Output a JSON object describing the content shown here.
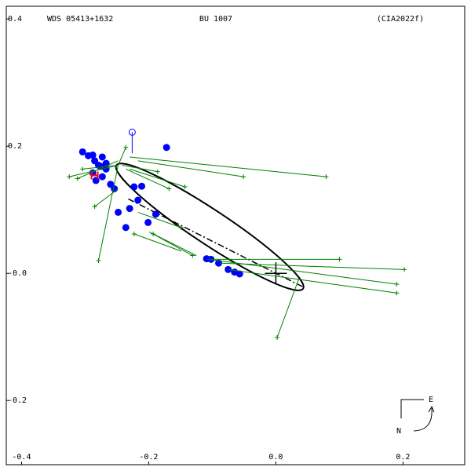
{
  "chart_data": {
    "type": "scatter",
    "title": "WDS 05413+1632",
    "subtitle": "BU 1007",
    "reference": "(CIA2022f)",
    "xlim": [
      -0.424,
      0.297
    ],
    "ylim": [
      -0.301,
      0.42
    ],
    "xticks": [
      -0.4,
      -0.2,
      {
        "value": 0,
        "label": "0.0"
      },
      0.2
    ],
    "yticks": [
      0.4,
      0.2,
      {
        "value": 0,
        "label": "-0.0"
      },
      -0.2
    ],
    "compass": {
      "east": "E",
      "north": "N"
    },
    "primary": {
      "x": 0,
      "y": 0,
      "color": "#000000"
    },
    "orbit": {
      "center_x": -0.104,
      "center_y": 0.073,
      "semi_major": 0.176,
      "semi_minor": 0.027,
      "angle": -33.5,
      "color": "#000000"
    },
    "node_line": {
      "x": [
        -0.232,
        0.042
      ],
      "y": [
        0.117,
        -0.021
      ]
    },
    "series": [
      {
        "color": "#0000ff",
        "marker": "dot",
        "x": [
          -0.304,
          -0.295,
          -0.288,
          -0.285,
          -0.279,
          -0.288,
          -0.283,
          -0.273,
          -0.267,
          -0.275,
          -0.26,
          -0.254,
          -0.248,
          -0.236,
          -0.223,
          -0.217,
          -0.211,
          -0.23,
          -0.201,
          -0.189,
          -0.172,
          -0.267,
          -0.273,
          -0.109,
          -0.102,
          -0.09,
          -0.075,
          -0.065,
          -0.057
        ],
        "y": [
          0.191,
          0.185,
          0.186,
          0.177,
          0.17,
          0.158,
          0.146,
          0.152,
          0.164,
          0.168,
          0.14,
          0.133,
          0.096,
          0.072,
          0.136,
          0.115,
          0.137,
          0.102,
          0.08,
          0.093,
          0.198,
          0.173,
          0.183,
          0.023,
          0.022,
          0.016,
          0.006,
          0.002,
          -0.001
        ]
      },
      {
        "color": "#008000",
        "marker": "plus",
        "x": [
          -0.051,
          0.079,
          0.1,
          0.202,
          0.19,
          0.19,
          0.002,
          -0.279,
          -0.312,
          -0.325,
          -0.236,
          -0.186,
          -0.168,
          -0.143,
          -0.131,
          -0.149,
          -0.193,
          -0.223,
          -0.285,
          -0.304
        ],
        "y": [
          0.152,
          0.152,
          0.022,
          0.006,
          -0.017,
          -0.031,
          -0.101,
          0.02,
          0.149,
          0.152,
          0.198,
          0.16,
          0.133,
          0.136,
          0.028,
          0.072,
          0.062,
          0.062,
          0.105,
          0.164
        ],
        "fit_x": [
          -0.217,
          -0.23,
          -0.106,
          -0.088,
          -0.106,
          -0.075,
          0.036,
          -0.248,
          -0.248,
          -0.248,
          -0.248,
          -0.242,
          -0.236,
          -0.23,
          -0.199,
          -0.217,
          -0.125,
          -0.149,
          -0.248,
          -0.248
        ],
        "fit_y": [
          0.177,
          0.183,
          0.022,
          0.016,
          0.022,
          0.006,
          -0.009,
          0.17,
          0.177,
          0.17,
          0.17,
          0.17,
          0.164,
          0.164,
          0.065,
          0.096,
          0.028,
          0.035,
          0.133,
          0.17
        ]
      },
      {
        "color": "#0000ff",
        "marker": "open",
        "x": [
          -0.226
        ],
        "y": [
          0.222
        ],
        "fit_x": [
          -0.226
        ],
        "fit_y": [
          0.189
        ]
      },
      {
        "color": "#ff0000",
        "marker": "H",
        "x": [
          -0.285
        ],
        "y": [
          0.154
        ]
      }
    ]
  }
}
